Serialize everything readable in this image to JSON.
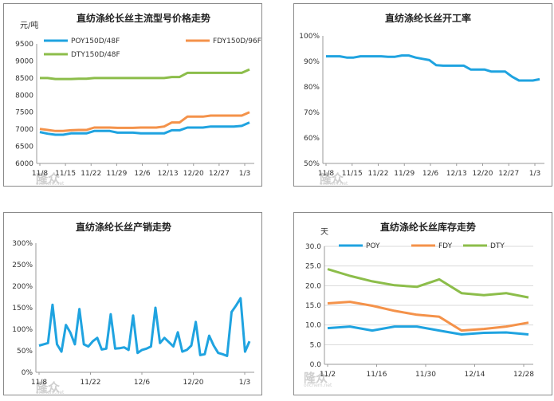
{
  "chart_data": [
    {
      "type": "line",
      "title": "直纺涤纶长丝主流型号价格走势",
      "unit_label": "元/吨",
      "ylim": [
        6000,
        9500
      ],
      "yticks": [
        "6000",
        "6500",
        "7000",
        "7500",
        "8000",
        "8500",
        "9000",
        "9500"
      ],
      "xticks": [
        "11/8",
        "11/15",
        "11/22",
        "11/29",
        "12/6",
        "12/13",
        "12/20",
        "12/27",
        "1/3"
      ],
      "legend": "top",
      "grid": false,
      "series": [
        {
          "name": "POY150D/48F",
          "color": "#1fa3e0",
          "values": [
            6920,
            6870,
            6840,
            6840,
            6880,
            6880,
            6880,
            6950,
            6950,
            6950,
            6900,
            6900,
            6900,
            6880,
            6880,
            6880,
            6880,
            6970,
            6970,
            7050,
            7050,
            7050,
            7080,
            7080,
            7080,
            7080,
            7100,
            7200
          ]
        },
        {
          "name": "FDY150D/96F",
          "color": "#f4924a",
          "values": [
            7010,
            6980,
            6950,
            6950,
            6970,
            6980,
            6980,
            7050,
            7050,
            7050,
            7040,
            7040,
            7040,
            7050,
            7050,
            7050,
            7080,
            7200,
            7200,
            7370,
            7370,
            7370,
            7400,
            7400,
            7400,
            7400,
            7400,
            7500
          ]
        },
        {
          "name": "DTY150D/48F",
          "color": "#8cbd4a",
          "values": [
            8500,
            8500,
            8470,
            8470,
            8470,
            8480,
            8480,
            8500,
            8500,
            8500,
            8500,
            8500,
            8500,
            8500,
            8500,
            8500,
            8500,
            8530,
            8530,
            8650,
            8650,
            8650,
            8650,
            8650,
            8650,
            8650,
            8650,
            8750
          ]
        }
      ]
    },
    {
      "type": "line",
      "title": "直纺涤纶长丝开工率",
      "ylim": [
        50,
        100
      ],
      "yticks": [
        "50%",
        "60%",
        "70%",
        "80%",
        "90%",
        "100%"
      ],
      "xticks": [
        "11/8",
        "11/15",
        "11/22",
        "11/29",
        "12/6",
        "12/13",
        "12/20",
        "12/27",
        "1/3"
      ],
      "grid": false,
      "series": [
        {
          "name": "",
          "color": "#1fa3e0",
          "values": [
            92,
            92,
            92,
            91.5,
            91.5,
            92,
            92,
            92,
            92,
            91.8,
            91.8,
            92.3,
            92.3,
            91.5,
            91,
            90.5,
            88.5,
            88.3,
            88.3,
            88.3,
            88.3,
            86.8,
            86.8,
            86.8,
            86,
            86,
            86,
            84,
            82.5,
            82.5,
            82.5,
            83
          ]
        }
      ]
    },
    {
      "type": "line",
      "title": "直纺涤纶长丝产销走势",
      "ylim": [
        0,
        300
      ],
      "yticks": [
        "0%",
        "50%",
        "100%",
        "150%",
        "200%",
        "250%",
        "300%"
      ],
      "xticks": [
        "11/8",
        "11/22",
        "12/6",
        "12/20",
        "1/3"
      ],
      "grid": false,
      "series": [
        {
          "name": "",
          "color": "#1fa3e0",
          "values": [
            62,
            65,
            68,
            157,
            65,
            48,
            110,
            92,
            65,
            147,
            65,
            60,
            72,
            80,
            53,
            55,
            135,
            55,
            56,
            58,
            52,
            132,
            45,
            52,
            55,
            60,
            150,
            68,
            80,
            70,
            60,
            93,
            48,
            52,
            62,
            117,
            40,
            42,
            85,
            62,
            45,
            42,
            38,
            140,
            155,
            172,
            48,
            72
          ]
        }
      ]
    },
    {
      "type": "line",
      "title": "直纺涤纶长丝库存走势",
      "unit_label": "天",
      "ylim": [
        0,
        30
      ],
      "yticks": [
        "0.0",
        "5.0",
        "10.0",
        "15.0",
        "20.0",
        "25.0",
        "30.0"
      ],
      "xticks": [
        "11/2",
        "11/16",
        "11/30",
        "12/14",
        "12/28"
      ],
      "legend": "top",
      "grid": true,
      "series": [
        {
          "name": "POY",
          "color": "#1fa3e0",
          "values": [
            9.2,
            9.6,
            8.6,
            9.6,
            9.6,
            8.6,
            7.6,
            8,
            8.1,
            7.6
          ]
        },
        {
          "name": "FDY",
          "color": "#f4924a",
          "values": [
            15.5,
            15.9,
            14.9,
            13.6,
            12.6,
            12.1,
            8.6,
            9,
            9.6,
            10.6
          ]
        },
        {
          "name": "DTY",
          "color": "#8cbd4a",
          "values": [
            24.2,
            22.5,
            21.1,
            20.1,
            19.7,
            21.6,
            18.1,
            17.6,
            18.1,
            17
          ]
        }
      ]
    }
  ],
  "watermark": {
    "text": "隆众",
    "sub": "oilchem.net"
  }
}
